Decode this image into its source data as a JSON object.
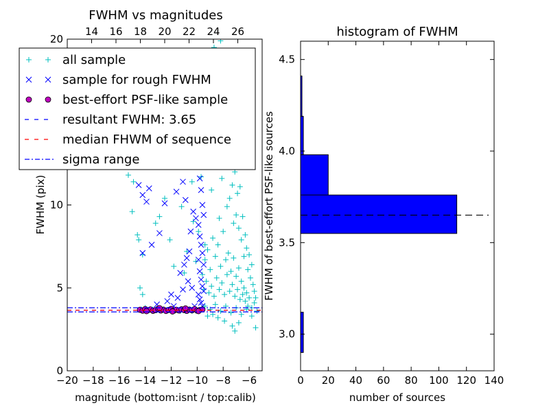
{
  "chart_data": [
    {
      "type": "scatter",
      "title": "FWHM vs magnitudes",
      "xlabel": "magnitude (bottom:isnt / top:calib)",
      "ylabel": "FWHM (pix)",
      "xlim": [
        -20,
        -5
      ],
      "ylim": [
        0,
        20
      ],
      "top_xlim": [
        12,
        28
      ],
      "x_ticks": [
        -20,
        -18,
        -16,
        -14,
        -12,
        -10,
        -8,
        -6
      ],
      "x_tick_labels": [
        "−20",
        "−18",
        "−16",
        "−14",
        "−12",
        "−10",
        "−8",
        "−6"
      ],
      "top_x_ticks": [
        14,
        16,
        18,
        20,
        22,
        24,
        26
      ],
      "top_x_tick_labels": [
        "14",
        "16",
        "18",
        "20",
        "22",
        "24",
        "26"
      ],
      "y_ticks": [
        0,
        5,
        10,
        20
      ],
      "y_tick_labels": [
        "0",
        "5",
        "10",
        "20"
      ],
      "grid": false,
      "legend_position": "upper-left",
      "legend": [
        {
          "label": "all sample",
          "marker": "plus",
          "color": "#00bfbf"
        },
        {
          "label": "sample for rough FWHM",
          "marker": "x",
          "color": "#0000ff"
        },
        {
          "label": "best-effort PSF-like sample",
          "marker": "circle",
          "color": "#bf00bf"
        },
        {
          "label": "resultant FWHM: 3.65",
          "marker": "dashed-line",
          "color": "#0000ff"
        },
        {
          "label": "median FHWM of sequence",
          "marker": "dashed-line",
          "color": "#ff0000"
        },
        {
          "label": "sigma range",
          "marker": "dashdot-line",
          "color": "#0000ff"
        }
      ],
      "hlines": [
        {
          "y": 3.65,
          "style": "dashed",
          "color": "#0000ff"
        },
        {
          "y": 3.65,
          "style": "dashed",
          "color": "#ff0000"
        },
        {
          "y": 3.55,
          "style": "dashdot",
          "color": "#0000ff"
        },
        {
          "y": 3.8,
          "style": "dashdot",
          "color": "#0000ff"
        }
      ],
      "series": [
        {
          "name": "all sample",
          "marker": "plus",
          "color": "#00bfbf",
          "points": [
            [
              -15.3,
              11.8
            ],
            [
              -14.9,
              11.4
            ],
            [
              -15.0,
              9.6
            ],
            [
              -14.6,
              8.2
            ],
            [
              -14.5,
              7.9
            ],
            [
              -14.2,
              7.0
            ],
            [
              -14.4,
              5.0
            ],
            [
              -14.2,
              4.6
            ],
            [
              -13.2,
              8.9
            ],
            [
              -12.9,
              9.3
            ],
            [
              -12.5,
              10.4
            ],
            [
              -12.1,
              7.9
            ],
            [
              -11.8,
              6.3
            ],
            [
              -11.2,
              9.9
            ],
            [
              -11.0,
              5.9
            ],
            [
              -10.8,
              7.2
            ],
            [
              -10.4,
              11.4
            ],
            [
              -10.3,
              9.0
            ],
            [
              -10.1,
              6.6
            ],
            [
              -9.9,
              8.4
            ],
            [
              -9.8,
              14.2
            ],
            [
              -9.7,
              11.7
            ],
            [
              -9.5,
              19.1
            ],
            [
              -9.4,
              7.6
            ],
            [
              -9.3,
              18.3
            ],
            [
              -9.1,
              13.2
            ],
            [
              -9.0,
              16.6
            ],
            [
              -8.9,
              10.9
            ],
            [
              -8.8,
              12.4
            ],
            [
              -8.7,
              19.5
            ],
            [
              -8.6,
              15.3
            ],
            [
              -8.5,
              17.9
            ],
            [
              -8.4,
              13.0
            ],
            [
              -8.3,
              9.2
            ],
            [
              -8.2,
              19.9
            ],
            [
              -8.1,
              11.6
            ],
            [
              -8.0,
              14.1
            ],
            [
              -7.9,
              18.6
            ],
            [
              -7.8,
              12.7
            ],
            [
              -7.7,
              9.9
            ],
            [
              -7.6,
              15.8
            ],
            [
              -7.5,
              10.4
            ],
            [
              -7.4,
              13.5
            ],
            [
              -7.3,
              11.2
            ],
            [
              -7.2,
              8.9
            ],
            [
              -7.1,
              12.0
            ],
            [
              -7.0,
              9.4
            ],
            [
              -6.9,
              10.7
            ],
            [
              -6.8,
              8.6
            ],
            [
              -6.7,
              11.1
            ],
            [
              -6.6,
              7.9
            ],
            [
              -6.5,
              9.3
            ],
            [
              -6.4,
              6.9
            ],
            [
              -6.3,
              8.2
            ],
            [
              -6.2,
              7.4
            ],
            [
              -6.1,
              6.1
            ],
            [
              -6.0,
              7.0
            ],
            [
              -5.9,
              5.6
            ],
            [
              -5.8,
              6.4
            ],
            [
              -5.7,
              5.2
            ],
            [
              -5.6,
              4.8
            ],
            [
              -5.5,
              4.4
            ],
            [
              -9.6,
              5.8
            ],
            [
              -9.5,
              4.9
            ],
            [
              -9.4,
              6.7
            ],
            [
              -9.3,
              5.4
            ],
            [
              -9.2,
              7.3
            ],
            [
              -9.1,
              4.7
            ],
            [
              -9.0,
              6.1
            ],
            [
              -8.9,
              5.1
            ],
            [
              -8.8,
              8.0
            ],
            [
              -8.7,
              4.5
            ],
            [
              -8.6,
              6.9
            ],
            [
              -8.5,
              5.6
            ],
            [
              -8.4,
              7.6
            ],
            [
              -8.3,
              4.9
            ],
            [
              -8.2,
              6.3
            ],
            [
              -8.1,
              5.3
            ],
            [
              -8.0,
              8.4
            ],
            [
              -7.9,
              4.6
            ],
            [
              -7.8,
              6.7
            ],
            [
              -7.7,
              5.8
            ],
            [
              -7.6,
              7.1
            ],
            [
              -7.5,
              4.8
            ],
            [
              -7.4,
              6.0
            ],
            [
              -7.3,
              5.2
            ],
            [
              -7.2,
              6.8
            ],
            [
              -7.1,
              4.5
            ],
            [
              -7.0,
              5.7
            ],
            [
              -6.9,
              4.9
            ],
            [
              -6.8,
              6.2
            ],
            [
              -6.7,
              4.3
            ],
            [
              -6.6,
              5.4
            ],
            [
              -6.5,
              4.6
            ],
            [
              -6.4,
              5.0
            ],
            [
              -6.3,
              4.2
            ],
            [
              -6.2,
              4.7
            ],
            [
              -6.1,
              3.9
            ],
            [
              -6.0,
              4.4
            ],
            [
              -5.8,
              3.8
            ],
            [
              -5.6,
              4.1
            ],
            [
              -5.4,
              3.6
            ],
            [
              -9.4,
              3.9
            ],
            [
              -9.0,
              3.7
            ],
            [
              -8.6,
              4.0
            ],
            [
              -8.2,
              3.6
            ],
            [
              -7.8,
              3.9
            ],
            [
              -7.4,
              3.5
            ],
            [
              -7.0,
              3.8
            ],
            [
              -6.6,
              3.4
            ],
            [
              -6.2,
              3.7
            ],
            [
              -5.8,
              3.3
            ],
            [
              -7.9,
              3.0
            ],
            [
              -7.3,
              2.7
            ],
            [
              -7.1,
              2.4
            ],
            [
              -6.8,
              2.9
            ],
            [
              -8.4,
              3.2
            ],
            [
              -8.8,
              3.4
            ],
            [
              -9.2,
              3.3
            ],
            [
              -10.4,
              3.6
            ],
            [
              -11.3,
              3.6
            ],
            [
              -12.6,
              3.7
            ],
            [
              -13.4,
              3.7
            ],
            [
              -14.3,
              3.7
            ],
            [
              -14.0,
              3.8
            ],
            [
              -12.0,
              3.7
            ],
            [
              -10.9,
              3.6
            ],
            [
              -5.5,
              2.6
            ]
          ]
        },
        {
          "name": "sample for rough FWHM",
          "marker": "x",
          "color": "#0000ff",
          "points": [
            [
              -14.5,
              11.2
            ],
            [
              -14.2,
              10.6
            ],
            [
              -13.9,
              10.2
            ],
            [
              -13.7,
              11.0
            ],
            [
              -12.5,
              10.1
            ],
            [
              -11.6,
              10.8
            ],
            [
              -11.1,
              11.4
            ],
            [
              -10.9,
              10.3
            ],
            [
              -10.5,
              8.4
            ],
            [
              -10.3,
              9.6
            ],
            [
              -10.1,
              9.2
            ],
            [
              -9.8,
              11.6
            ],
            [
              -9.7,
              10.9
            ],
            [
              -9.6,
              10.0
            ],
            [
              -9.5,
              9.4
            ],
            [
              -9.9,
              8.8
            ],
            [
              -9.8,
              8.1
            ],
            [
              -9.7,
              7.6
            ],
            [
              -9.6,
              7.1
            ],
            [
              -9.5,
              6.4
            ],
            [
              -9.9,
              6.7
            ],
            [
              -9.8,
              6.0
            ],
            [
              -9.7,
              5.5
            ],
            [
              -9.6,
              5.1
            ],
            [
              -9.5,
              4.8
            ],
            [
              -9.9,
              4.6
            ],
            [
              -9.8,
              4.3
            ],
            [
              -9.7,
              4.1
            ],
            [
              -9.6,
              3.9
            ],
            [
              -10.6,
              7.2
            ],
            [
              -10.8,
              6.8
            ],
            [
              -11.0,
              6.4
            ],
            [
              -11.3,
              5.9
            ],
            [
              -10.7,
              5.4
            ],
            [
              -10.4,
              5.0
            ],
            [
              -11.5,
              4.4
            ],
            [
              -12.3,
              4.2
            ],
            [
              -12.0,
              4.6
            ],
            [
              -11.1,
              4.9
            ],
            [
              -12.9,
              8.3
            ],
            [
              -13.5,
              7.6
            ],
            [
              -14.2,
              7.1
            ],
            [
              -10.2,
              3.9
            ],
            [
              -13.1,
              4.0
            ],
            [
              -11.8,
              3.9
            ]
          ]
        },
        {
          "name": "best-effort PSF-like sample",
          "marker": "circle",
          "color": "#bf00bf",
          "points": [
            [
              -14.4,
              3.68
            ],
            [
              -14.2,
              3.63
            ],
            [
              -14.0,
              3.72
            ],
            [
              -13.8,
              3.65
            ],
            [
              -13.6,
              3.7
            ],
            [
              -13.4,
              3.62
            ],
            [
              -13.2,
              3.66
            ],
            [
              -13.0,
              3.74
            ],
            [
              -12.8,
              3.64
            ],
            [
              -12.6,
              3.69
            ],
            [
              -12.4,
              3.61
            ],
            [
              -12.2,
              3.67
            ],
            [
              -12.0,
              3.73
            ],
            [
              -11.8,
              3.63
            ],
            [
              -11.6,
              3.68
            ],
            [
              -11.4,
              3.64
            ],
            [
              -11.2,
              3.71
            ],
            [
              -11.0,
              3.66
            ],
            [
              -10.8,
              3.62
            ],
            [
              -10.6,
              3.69
            ],
            [
              -10.4,
              3.65
            ],
            [
              -10.2,
              3.72
            ],
            [
              -10.0,
              3.63
            ],
            [
              -9.8,
              3.67
            ],
            [
              -9.6,
              3.7
            ],
            [
              -13.9,
              3.6
            ],
            [
              -12.9,
              3.78
            ],
            [
              -11.9,
              3.58
            ],
            [
              -10.9,
              3.76
            ],
            [
              -9.9,
              3.6
            ]
          ]
        }
      ]
    },
    {
      "type": "bar",
      "orientation": "horizontal",
      "title": "histogram of FWHM",
      "xlabel": "number of sources",
      "ylabel": "FWHM of best-effort PSF-like sources",
      "xlim": [
        0,
        140
      ],
      "ylim": [
        2.8,
        4.6
      ],
      "x_ticks": [
        0,
        20,
        40,
        60,
        80,
        100,
        120,
        140
      ],
      "x_tick_labels": [
        "0",
        "20",
        "40",
        "60",
        "80",
        "100",
        "120",
        "140"
      ],
      "y_ticks": [
        3.0,
        3.5,
        4.0,
        4.5
      ],
      "y_tick_labels": [
        "3.0",
        "3.5",
        "4.0",
        "4.5"
      ],
      "grid": false,
      "bar_color": "#0000ff",
      "bins": [
        {
          "y0": 2.9,
          "y1": 3.12,
          "count": 2
        },
        {
          "y0": 3.12,
          "y1": 3.34,
          "count": 0
        },
        {
          "y0": 3.34,
          "y1": 3.55,
          "count": 0
        },
        {
          "y0": 3.55,
          "y1": 3.76,
          "count": 113
        },
        {
          "y0": 3.76,
          "y1": 3.98,
          "count": 20
        },
        {
          "y0": 3.98,
          "y1": 4.19,
          "count": 2
        },
        {
          "y0": 4.19,
          "y1": 4.41,
          "count": 1
        }
      ],
      "hline": {
        "y": 3.65,
        "style": "dashed",
        "color": "#000000"
      }
    }
  ]
}
